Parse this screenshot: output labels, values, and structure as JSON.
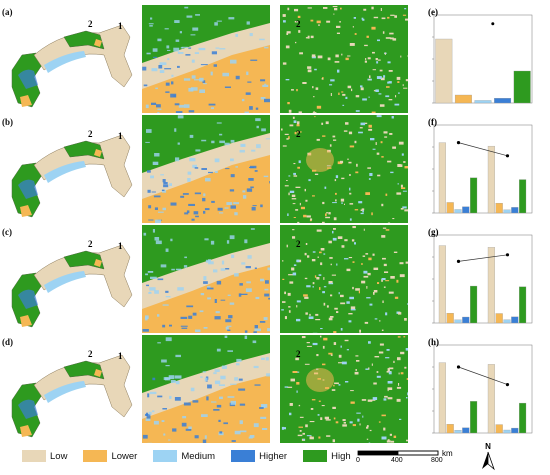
{
  "panels": [
    {
      "label": "(a)",
      "marker_2": "2",
      "marker_1": "1"
    },
    {
      "label": "(b)",
      "marker_2": "2",
      "marker_1": "1"
    },
    {
      "label": "(c)",
      "marker_2": "2",
      "marker_1": "1"
    },
    {
      "label": "(d)",
      "marker_2": "2",
      "marker_1": "1"
    }
  ],
  "chart_labels": [
    "(e)",
    "(f)",
    "(g)",
    "(h)"
  ],
  "legend": {
    "items": [
      {
        "label": "Low",
        "color": "#e8d7b8"
      },
      {
        "label": "Lower",
        "color": "#f5b754"
      },
      {
        "label": "Medium",
        "color": "#9dd3f3"
      },
      {
        "label": "Higher",
        "color": "#3a7fd6"
      },
      {
        "label": "High",
        "color": "#2e9a1f"
      }
    ]
  },
  "scalebar": {
    "ticks": [
      "0",
      "400",
      "800"
    ],
    "unit": "km"
  },
  "north": {
    "label": "N"
  },
  "colors": {
    "low": "#e8d7b8",
    "lower": "#f5b754",
    "medium": "#9dd3f3",
    "higher": "#3a7fd6",
    "high": "#2e9a1f"
  },
  "chart_data": [
    {
      "type": "bar",
      "categories": [
        "Low",
        "Lower",
        "Medium",
        "Higher",
        "High"
      ],
      "values": [
        200000,
        25000,
        8000,
        15000,
        100000
      ],
      "ylim": [
        0,
        275000
      ],
      "line_points": [
        0.47
      ],
      "y2lim": [
        0.38,
        0.48
      ],
      "legend": ""
    },
    {
      "type": "bar",
      "groups": [
        "",
        ""
      ],
      "series": [
        {
          "name": "",
          "values": [
            200000,
            190000
          ]
        },
        {
          "name": "",
          "values": [
            30000,
            28000
          ]
        },
        {
          "name": "",
          "values": [
            10000,
            9000
          ]
        },
        {
          "name": "",
          "values": [
            18000,
            16000
          ]
        },
        {
          "name": "",
          "values": [
            100000,
            95000
          ]
        }
      ],
      "ylim": [
        0,
        250000
      ],
      "line_points": [
        0.56,
        0.53
      ],
      "y2lim": [
        0.4,
        0.6
      ],
      "legend": ""
    },
    {
      "type": "bar",
      "groups": [
        "",
        ""
      ],
      "series": [
        {
          "name": "",
          "values": [
            220000,
            215000
          ]
        },
        {
          "name": "",
          "values": [
            28000,
            27000
          ]
        },
        {
          "name": "",
          "values": [
            9000,
            9500
          ]
        },
        {
          "name": "",
          "values": [
            17000,
            17500
          ]
        },
        {
          "name": "",
          "values": [
            105000,
            103000
          ]
        }
      ],
      "ylim": [
        0,
        250000
      ],
      "line_points": [
        0.54,
        0.555
      ],
      "y2lim": [
        0.4,
        0.6
      ],
      "legend": ""
    },
    {
      "type": "bar",
      "groups": [
        "",
        ""
      ],
      "series": [
        {
          "name": "",
          "values": [
            200000,
            195000
          ]
        },
        {
          "name": "",
          "values": [
            25000,
            24000
          ]
        },
        {
          "name": "",
          "values": [
            8000,
            8500
          ]
        },
        {
          "name": "",
          "values": [
            15000,
            14000
          ]
        },
        {
          "name": "",
          "values": [
            90000,
            85000
          ]
        }
      ],
      "ylim": [
        0,
        250000
      ],
      "line_points": [
        0.55,
        0.51
      ],
      "y2lim": [
        0.4,
        0.6
      ],
      "legend": ""
    }
  ]
}
